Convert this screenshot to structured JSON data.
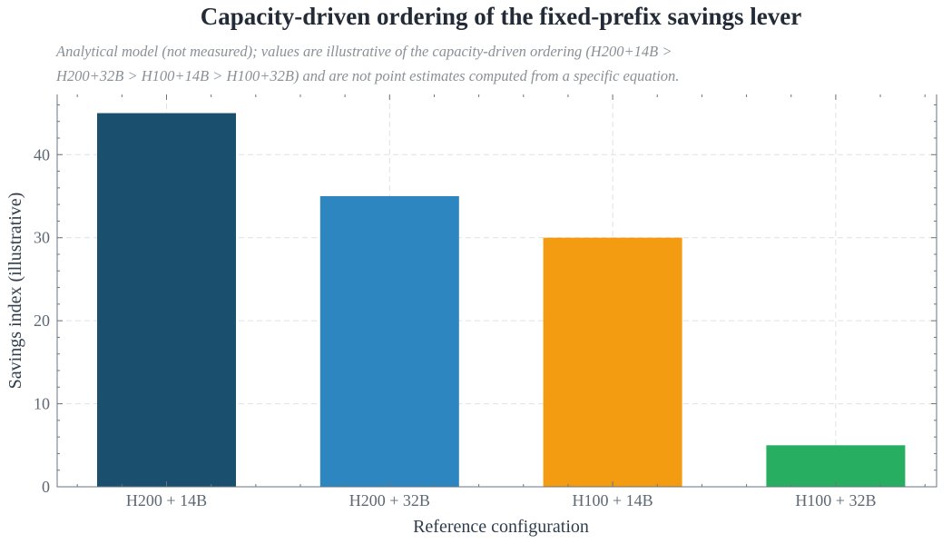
{
  "chart_data": {
    "type": "bar",
    "title": "Capacity-driven ordering of the fixed-prefix savings lever",
    "subtitle_lines": [
      "Analytical model (not measured); values are illustrative of the capacity-driven ordering (H200+14B >",
      "H200+32B > H100+14B > H100+32B) and are not point estimates computed from a specific equation."
    ],
    "xlabel": "Reference configuration",
    "ylabel": "Savings index (illustrative)",
    "categories": [
      "H200 + 14B",
      "H200 + 32B",
      "H100 + 14B",
      "H100 + 32B"
    ],
    "values": [
      45,
      35,
      30,
      5
    ],
    "colors": [
      "#1b4f6e",
      "#2e86c1",
      "#f39c12",
      "#27ae60"
    ],
    "ylim": [
      0,
      47.25
    ],
    "yticks": [
      0,
      10,
      20,
      30,
      40
    ],
    "grid": true,
    "legend": "none"
  }
}
